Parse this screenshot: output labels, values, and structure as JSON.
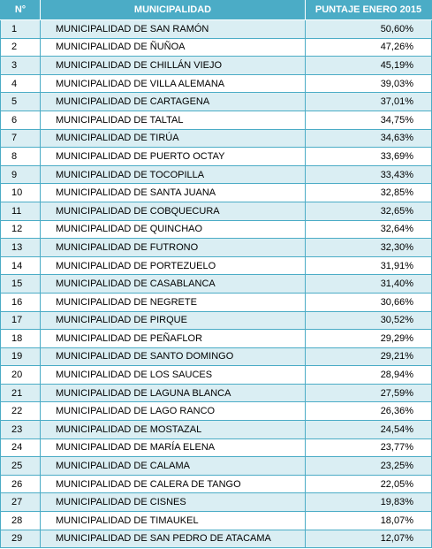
{
  "table": {
    "headers": {
      "number": "N°",
      "municipality": "MUNICIPALIDAD",
      "score": "PUNTAJE ENERO  2015"
    },
    "rows": [
      {
        "n": "1",
        "name": "MUNICIPALIDAD DE SAN RAMÓN",
        "score": "50,60%"
      },
      {
        "n": "2",
        "name": "MUNICIPALIDAD DE ÑUÑOA",
        "score": "47,26%"
      },
      {
        "n": "3",
        "name": "MUNICIPALIDAD DE CHILLÁN VIEJO",
        "score": "45,19%"
      },
      {
        "n": "4",
        "name": "MUNICIPALIDAD DE VILLA ALEMANA",
        "score": "39,03%"
      },
      {
        "n": "5",
        "name": "MUNICIPALIDAD DE CARTAGENA",
        "score": "37,01%"
      },
      {
        "n": "6",
        "name": "MUNICIPALIDAD DE TALTAL",
        "score": "34,75%"
      },
      {
        "n": "7",
        "name": "MUNICIPALIDAD DE TIRÚA",
        "score": "34,63%"
      },
      {
        "n": "8",
        "name": "MUNICIPALIDAD DE PUERTO OCTAY",
        "score": "33,69%"
      },
      {
        "n": "9",
        "name": "MUNICIPALIDAD DE TOCOPILLA",
        "score": "33,43%"
      },
      {
        "n": "10",
        "name": "MUNICIPALIDAD DE SANTA JUANA",
        "score": "32,85%"
      },
      {
        "n": "11",
        "name": "MUNICIPALIDAD DE COBQUECURA",
        "score": "32,65%"
      },
      {
        "n": "12",
        "name": "MUNICIPALIDAD DE QUINCHAO",
        "score": "32,64%"
      },
      {
        "n": "13",
        "name": "MUNICIPALIDAD DE FUTRONO",
        "score": "32,30%"
      },
      {
        "n": "14",
        "name": "MUNICIPALIDAD DE PORTEZUELO",
        "score": "31,91%"
      },
      {
        "n": "15",
        "name": "MUNICIPALIDAD DE CASABLANCA",
        "score": "31,40%"
      },
      {
        "n": "16",
        "name": "MUNICIPALIDAD DE NEGRETE",
        "score": "30,66%"
      },
      {
        "n": "17",
        "name": "MUNICIPALIDAD DE PIRQUE",
        "score": "30,52%"
      },
      {
        "n": "18",
        "name": "MUNICIPALIDAD DE PEÑAFLOR",
        "score": "29,29%"
      },
      {
        "n": "19",
        "name": "MUNICIPALIDAD DE SANTO DOMINGO",
        "score": "29,21%"
      },
      {
        "n": "20",
        "name": "MUNICIPALIDAD DE LOS SAUCES",
        "score": "28,94%"
      },
      {
        "n": "21",
        "name": "MUNICIPALIDAD DE LAGUNA BLANCA",
        "score": "27,59%"
      },
      {
        "n": "22",
        "name": "MUNICIPALIDAD DE LAGO RANCO",
        "score": "26,36%"
      },
      {
        "n": "23",
        "name": "MUNICIPALIDAD DE MOSTAZAL",
        "score": "24,54%"
      },
      {
        "n": "24",
        "name": "MUNICIPALIDAD DE MARÍA ELENA",
        "score": "23,77%"
      },
      {
        "n": "25",
        "name": "MUNICIPALIDAD DE CALAMA",
        "score": "23,25%"
      },
      {
        "n": "26",
        "name": "MUNICIPALIDAD DE CALERA DE TANGO",
        "score": "22,05%"
      },
      {
        "n": "27",
        "name": "MUNICIPALIDAD DE CISNES",
        "score": "19,83%"
      },
      {
        "n": "28",
        "name": "MUNICIPALIDAD DE TIMAUKEL",
        "score": "18,07%"
      },
      {
        "n": "29",
        "name": "MUNICIPALIDAD  DE SAN PEDRO DE  ATACAMA",
        "score": "12,07%"
      }
    ]
  },
  "colors": {
    "header_bg": "#4bacc6",
    "band_bg": "#daeef3",
    "border": "#4bacc6"
  }
}
